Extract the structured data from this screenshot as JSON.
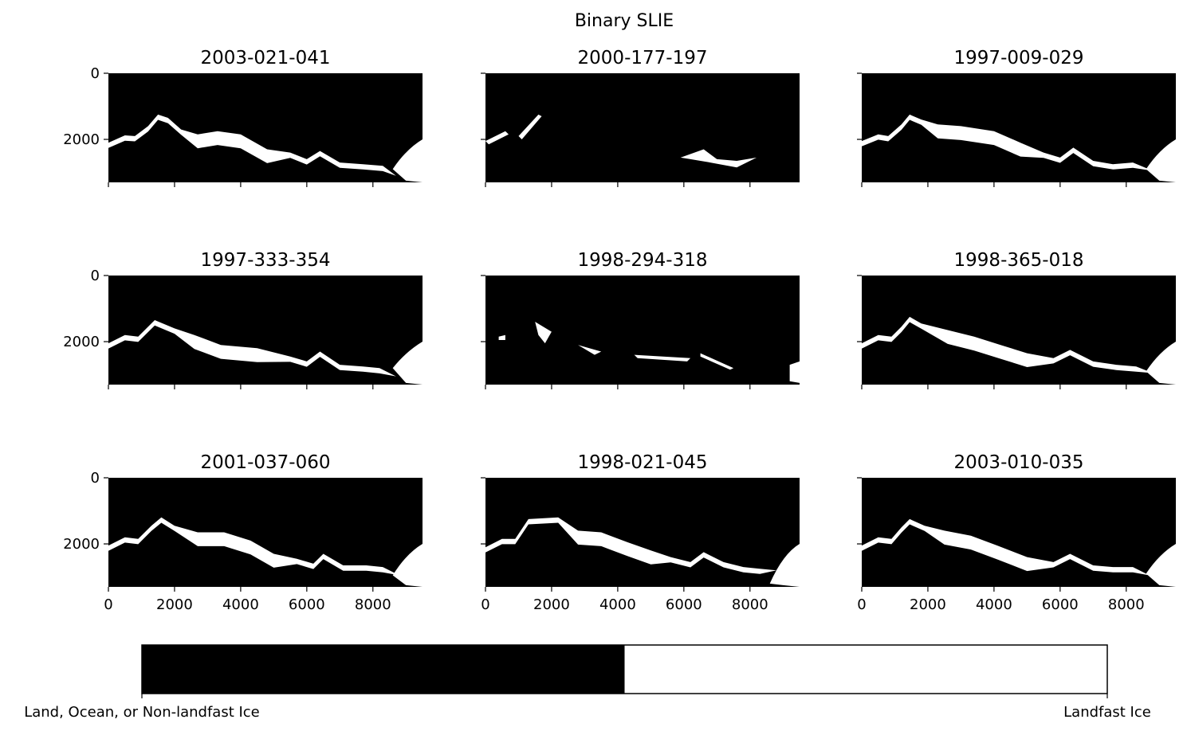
{
  "figure": {
    "title": "Binary SLIE"
  },
  "chart_data": {
    "type": "heatmap",
    "title": "Binary SLIE",
    "grid": false,
    "layout": "3x3 panels with shared colorbar at bottom",
    "xlim": [
      0,
      9500
    ],
    "ylim": [
      3300,
      0
    ],
    "xticks": [
      0,
      2000,
      4000,
      6000,
      8000
    ],
    "yticks": [
      0,
      2000
    ],
    "x_tick_labels_on_bottom_row_only": true,
    "y_tick_labels_on_left_column_only": true,
    "colormap": {
      "type": "binary",
      "colors": [
        "#000000",
        "#ffffff"
      ],
      "labels": [
        "Land, Ocean, or Non-landfast Ice",
        "Landfast Ice"
      ]
    },
    "panels": [
      {
        "title": "2003-021-041",
        "ice": "large",
        "profile": [
          [
            0,
            2100
          ],
          [
            500,
            1880
          ],
          [
            800,
            1900
          ],
          [
            1200,
            1600
          ],
          [
            1500,
            1250
          ],
          [
            1800,
            1350
          ],
          [
            2200,
            1700
          ],
          [
            2700,
            1850
          ],
          [
            3300,
            1750
          ],
          [
            4000,
            1850
          ],
          [
            4800,
            2300
          ],
          [
            5500,
            2400
          ],
          [
            6000,
            2600
          ],
          [
            6400,
            2350
          ],
          [
            7000,
            2700
          ],
          [
            7700,
            2750
          ],
          [
            8300,
            2800
          ],
          [
            8700,
            3100
          ],
          [
            9000,
            2600
          ],
          [
            9500,
            2050
          ]
        ],
        "tail": "2900"
      },
      {
        "title": "2000-177-197",
        "ice": "sparse",
        "profile": [],
        "tail": ""
      },
      {
        "title": "1997-009-029",
        "ice": "large",
        "profile": [
          [
            0,
            2050
          ],
          [
            500,
            1850
          ],
          [
            800,
            1900
          ],
          [
            1200,
            1550
          ],
          [
            1450,
            1250
          ],
          [
            1800,
            1400
          ],
          [
            2300,
            1550
          ],
          [
            3000,
            1600
          ],
          [
            4000,
            1750
          ],
          [
            4800,
            2100
          ],
          [
            5500,
            2400
          ],
          [
            6000,
            2550
          ],
          [
            6400,
            2250
          ],
          [
            7000,
            2650
          ],
          [
            7600,
            2750
          ],
          [
            8200,
            2700
          ],
          [
            8800,
            2950
          ],
          [
            9200,
            2500
          ],
          [
            9500,
            1950
          ]
        ],
        "tail": "2900"
      },
      {
        "title": "1997-333-354",
        "ice": "medium",
        "profile": [
          [
            0,
            2050
          ],
          [
            500,
            1800
          ],
          [
            900,
            1850
          ],
          [
            1400,
            1350
          ],
          [
            2000,
            1600
          ],
          [
            2600,
            1800
          ],
          [
            3400,
            2100
          ],
          [
            4500,
            2200
          ],
          [
            5500,
            2450
          ],
          [
            6000,
            2600
          ],
          [
            6400,
            2300
          ],
          [
            7000,
            2700
          ],
          [
            7700,
            2750
          ],
          [
            8200,
            2800
          ],
          [
            8700,
            3050
          ],
          [
            9100,
            2700
          ],
          [
            9500,
            2300
          ]
        ],
        "tail": "2800"
      },
      {
        "title": "1998-294-318",
        "ice": "sparse",
        "profile": [],
        "tail": ""
      },
      {
        "title": "1998-365-018",
        "ice": "large",
        "profile": [
          [
            0,
            2050
          ],
          [
            500,
            1800
          ],
          [
            900,
            1850
          ],
          [
            1200,
            1550
          ],
          [
            1450,
            1250
          ],
          [
            1800,
            1450
          ],
          [
            2600,
            1650
          ],
          [
            3400,
            1850
          ],
          [
            4200,
            2100
          ],
          [
            5000,
            2350
          ],
          [
            5800,
            2500
          ],
          [
            6300,
            2250
          ],
          [
            7000,
            2600
          ],
          [
            7700,
            2700
          ],
          [
            8300,
            2750
          ],
          [
            8800,
            2950
          ],
          [
            9200,
            2400
          ],
          [
            9500,
            2000
          ]
        ],
        "tail": "2900"
      },
      {
        "title": "2001-037-060",
        "ice": "large",
        "profile": [
          [
            0,
            2050
          ],
          [
            500,
            1800
          ],
          [
            900,
            1850
          ],
          [
            1300,
            1450
          ],
          [
            1600,
            1200
          ],
          [
            2000,
            1450
          ],
          [
            2700,
            1650
          ],
          [
            3500,
            1650
          ],
          [
            4300,
            1900
          ],
          [
            5000,
            2300
          ],
          [
            5700,
            2450
          ],
          [
            6200,
            2600
          ],
          [
            6500,
            2300
          ],
          [
            7100,
            2650
          ],
          [
            7800,
            2650
          ],
          [
            8300,
            2700
          ],
          [
            8800,
            2950
          ],
          [
            9200,
            2400
          ],
          [
            9500,
            1950
          ]
        ],
        "tail": "2950"
      },
      {
        "title": "1998-021-045",
        "ice": "large",
        "profile": [
          [
            0,
            2100
          ],
          [
            500,
            1850
          ],
          [
            900,
            1850
          ],
          [
            1300,
            1250
          ],
          [
            2200,
            1200
          ],
          [
            2800,
            1600
          ],
          [
            3500,
            1650
          ],
          [
            4300,
            1950
          ],
          [
            5000,
            2200
          ],
          [
            5600,
            2400
          ],
          [
            6200,
            2550
          ],
          [
            6600,
            2250
          ],
          [
            7200,
            2550
          ],
          [
            7800,
            2700
          ],
          [
            8300,
            2750
          ],
          [
            8800,
            2800
          ],
          [
            9200,
            2300
          ],
          [
            9500,
            1900
          ]
        ],
        "tail": "3200"
      },
      {
        "title": "2003-010-035",
        "ice": "large",
        "profile": [
          [
            0,
            2050
          ],
          [
            500,
            1800
          ],
          [
            900,
            1850
          ],
          [
            1200,
            1500
          ],
          [
            1450,
            1250
          ],
          [
            1900,
            1450
          ],
          [
            2500,
            1600
          ],
          [
            3300,
            1750
          ],
          [
            4100,
            2050
          ],
          [
            5000,
            2400
          ],
          [
            5800,
            2550
          ],
          [
            6300,
            2300
          ],
          [
            7000,
            2650
          ],
          [
            7600,
            2700
          ],
          [
            8200,
            2700
          ],
          [
            8700,
            2950
          ],
          [
            9100,
            2500
          ],
          [
            9500,
            1950
          ]
        ],
        "tail": "2900"
      }
    ]
  }
}
